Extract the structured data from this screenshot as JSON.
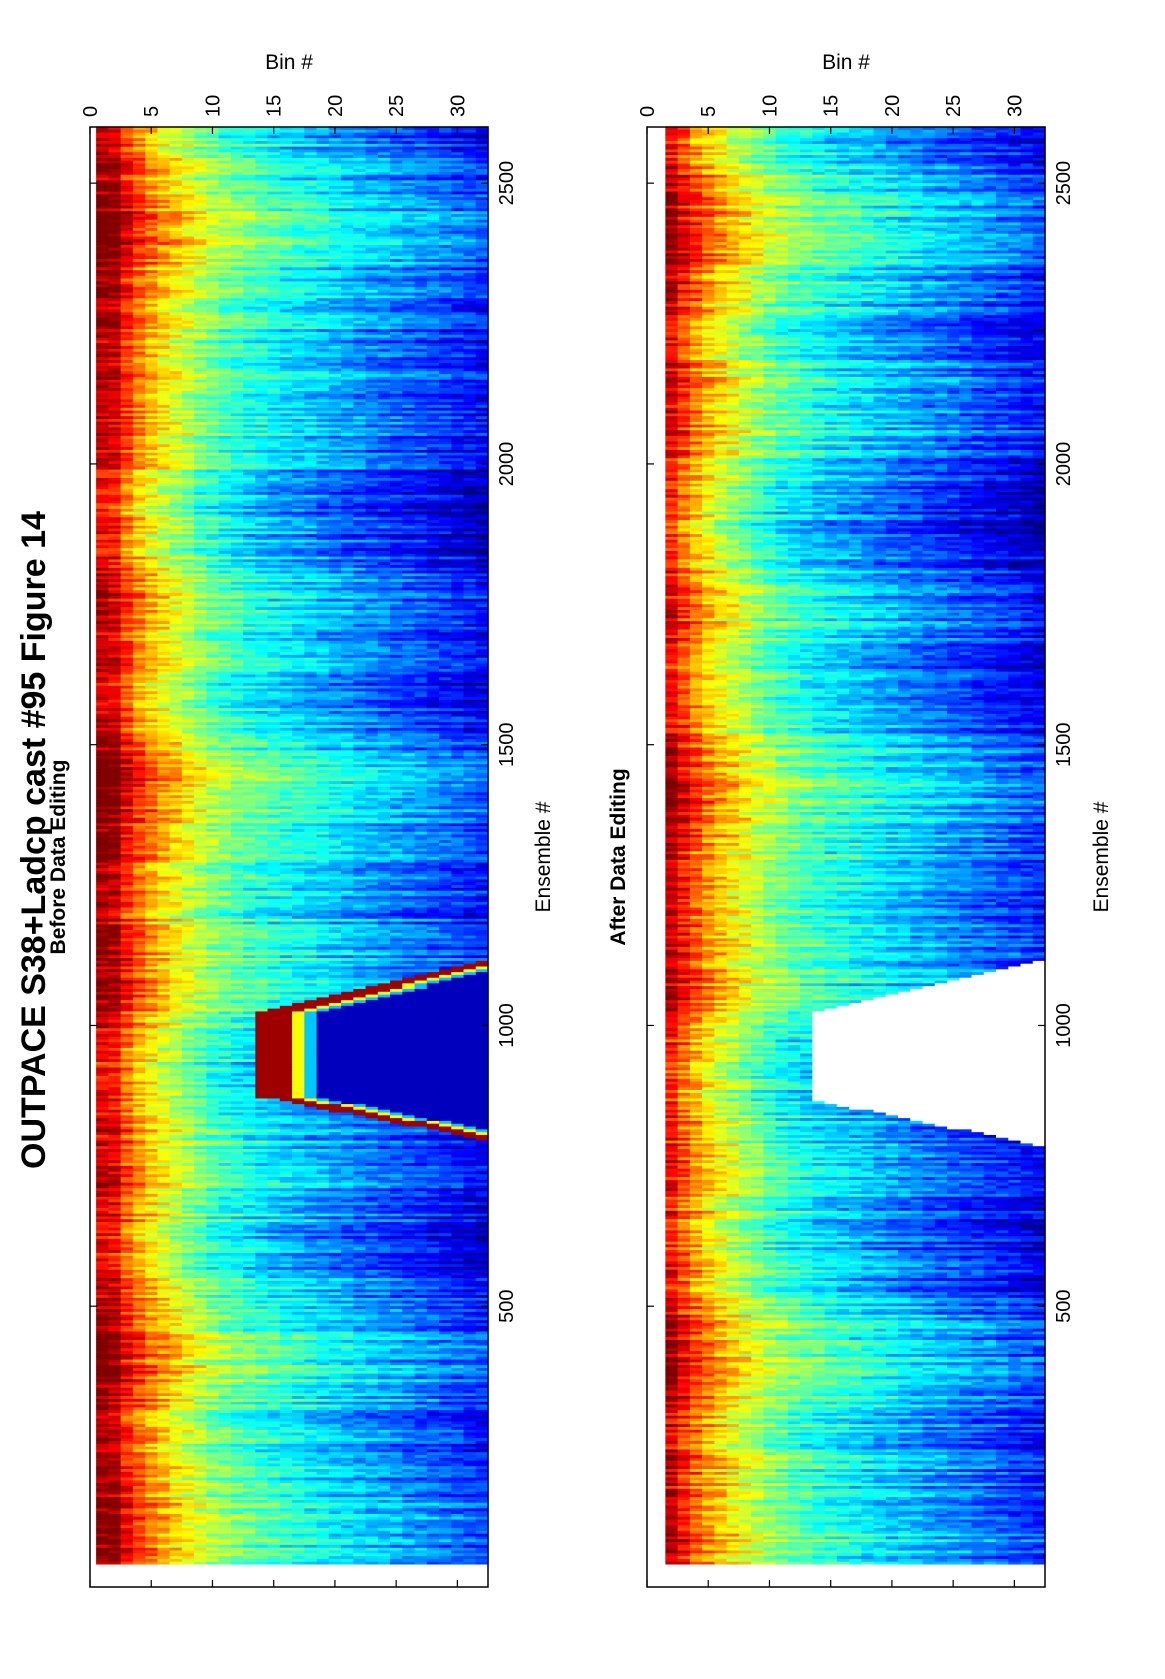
{
  "figure": {
    "title": "OUTPACE S38+Ladcp cast #95  Figure 14"
  },
  "chart_data": [
    {
      "type": "heatmap",
      "title": "Before Data Editing",
      "xlabel": "Ensemble #",
      "ylabel": "Bin #",
      "xlim": [
        0,
        2600
      ],
      "ylim": [
        0,
        32.5
      ],
      "y_reversed": true,
      "x_ticks": [
        500,
        1000,
        1500,
        2000,
        2500
      ],
      "y_ticks": [
        0,
        5,
        10,
        15,
        20,
        25,
        30
      ],
      "colormap": "jet",
      "grid": false,
      "legend": "none",
      "depth_profile": [
        [
          1,
          0.94
        ],
        [
          2,
          0.92
        ],
        [
          3,
          0.82
        ],
        [
          4,
          0.75
        ],
        [
          5,
          0.69
        ],
        [
          6,
          0.64
        ],
        [
          7,
          0.6
        ],
        [
          8,
          0.56
        ],
        [
          9,
          0.52
        ],
        [
          10,
          0.48
        ],
        [
          12,
          0.43
        ],
        [
          14,
          0.39
        ],
        [
          16,
          0.36
        ],
        [
          18,
          0.33
        ],
        [
          20,
          0.3
        ],
        [
          22,
          0.27
        ],
        [
          25,
          0.23
        ],
        [
          28,
          0.19
        ],
        [
          30,
          0.16
        ],
        [
          32,
          0.13
        ]
      ],
      "bottom_feature": {
        "ensemble_start": 790,
        "plateau_start": 870,
        "plateau_end": 1020,
        "ensemble_end": 1120,
        "min_bin": 14
      }
    },
    {
      "type": "heatmap",
      "title": "After Data Editing",
      "xlabel": "Ensemble #",
      "ylabel": "Bin #",
      "xlim": [
        0,
        2600
      ],
      "ylim": [
        0,
        32.5
      ],
      "y_reversed": true,
      "x_ticks": [
        500,
        1000,
        1500,
        2000,
        2500
      ],
      "y_ticks": [
        0,
        5,
        10,
        15,
        20,
        25,
        30
      ],
      "colormap": "jet",
      "grid": false,
      "legend": "none",
      "depth_profile": [
        [
          2,
          0.9
        ],
        [
          3,
          0.82
        ],
        [
          4,
          0.75
        ],
        [
          5,
          0.69
        ],
        [
          6,
          0.64
        ],
        [
          7,
          0.6
        ],
        [
          8,
          0.56
        ],
        [
          9,
          0.52
        ],
        [
          10,
          0.48
        ],
        [
          12,
          0.43
        ],
        [
          14,
          0.39
        ],
        [
          16,
          0.36
        ],
        [
          18,
          0.33
        ],
        [
          20,
          0.3
        ],
        [
          22,
          0.27
        ],
        [
          25,
          0.23
        ],
        [
          28,
          0.19
        ],
        [
          30,
          0.16
        ],
        [
          32,
          0.13
        ]
      ],
      "blanked_region": {
        "ensemble_start": 780,
        "plateau_start": 865,
        "plateau_end": 1020,
        "ensemble_end": 1120,
        "min_bin": 13.5
      }
    }
  ]
}
